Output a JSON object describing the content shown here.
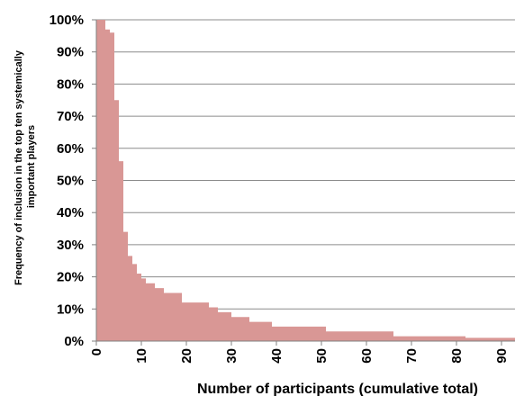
{
  "chart_data": {
    "type": "area",
    "title": "",
    "xlabel": "Number of participants (cumulative total)",
    "ylabel_lines": [
      "Frequency of inclusion in the top ten  systemically",
      "important players"
    ],
    "xlim": [
      0,
      93
    ],
    "ylim": [
      0,
      100
    ],
    "y_unit": "%",
    "grid": true,
    "color": "#d99795",
    "x_ticks": [
      "0",
      "10",
      "20",
      "30",
      "40",
      "50",
      "60",
      "70",
      "80",
      "90"
    ],
    "y_ticks": [
      "0%",
      "10%",
      "20%",
      "30%",
      "40%",
      "50%",
      "60%",
      "70%",
      "80%",
      "90%",
      "100%"
    ],
    "series": [
      {
        "name": "",
        "x": [
          0,
          2,
          3,
          4,
          5,
          6,
          7,
          8,
          9,
          10,
          11,
          13,
          15,
          19,
          25,
          27,
          30,
          34,
          39,
          42,
          51,
          59,
          66,
          80,
          82,
          93
        ],
        "values": [
          100,
          97,
          96,
          75,
          56,
          34,
          26.5,
          24,
          21,
          19.5,
          18,
          16.5,
          15,
          12,
          10.5,
          9,
          7.5,
          6,
          4.5,
          4.5,
          3,
          3,
          1.5,
          1.5,
          1,
          1
        ]
      }
    ]
  }
}
